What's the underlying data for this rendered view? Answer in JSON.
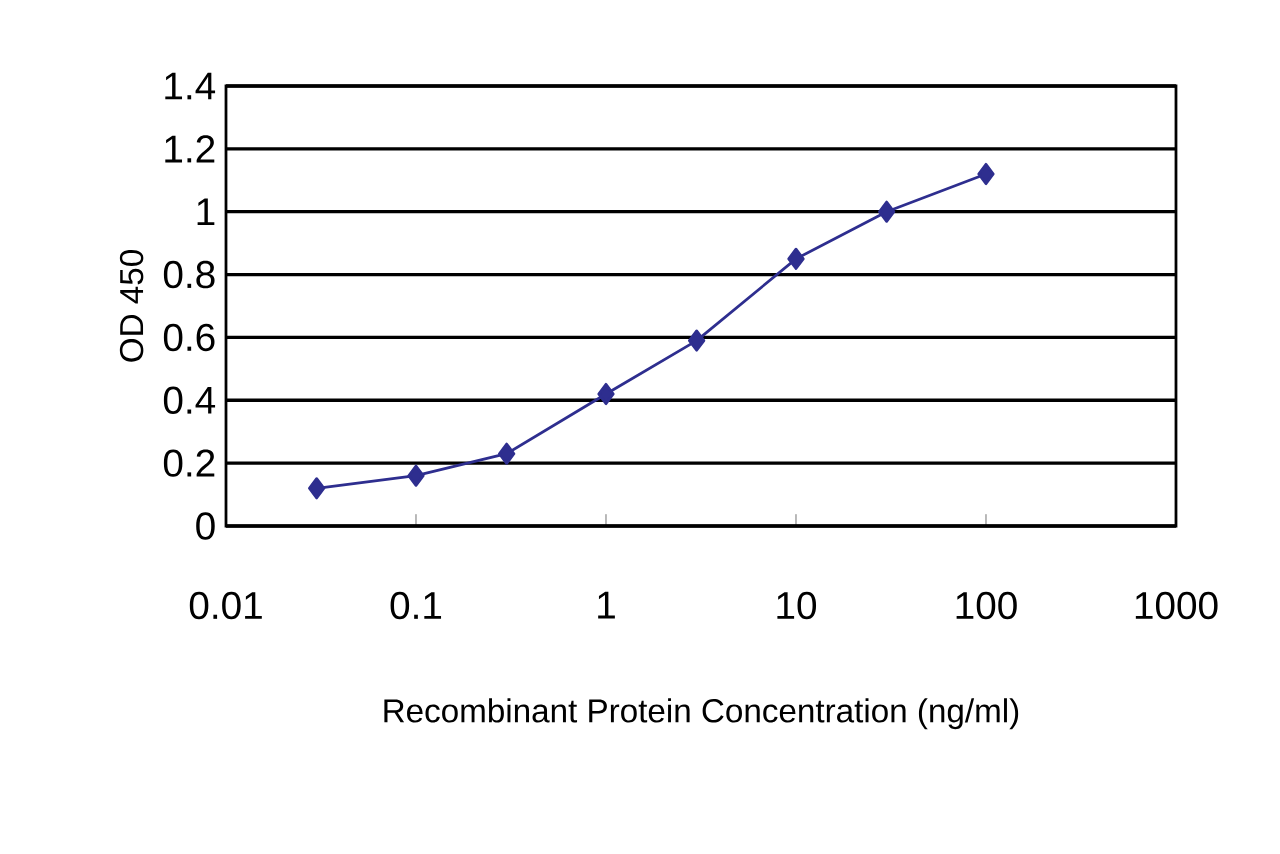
{
  "chart_data": {
    "type": "line",
    "xlabel": "Recombinant Protein Concentration (ng/ml)",
    "ylabel": "OD 450",
    "log": "x",
    "xlim": [
      0.01,
      1000
    ],
    "xticks": [
      0.01,
      0.1,
      1,
      10,
      100,
      1000
    ],
    "ylim": [
      0,
      1.4
    ],
    "yticks": [
      0,
      0.2,
      0.4,
      0.6,
      0.8,
      1,
      1.2,
      1.4
    ],
    "grid": "y",
    "marker": "diamond",
    "line_style": "solid",
    "series": [
      {
        "color": "#2e2e8f",
        "x": [
          0.03,
          0.1,
          0.3,
          1,
          3,
          10,
          30,
          100
        ],
        "values": [
          0.12,
          0.16,
          0.23,
          0.42,
          0.59,
          0.85,
          1.0,
          1.12
        ]
      }
    ]
  }
}
